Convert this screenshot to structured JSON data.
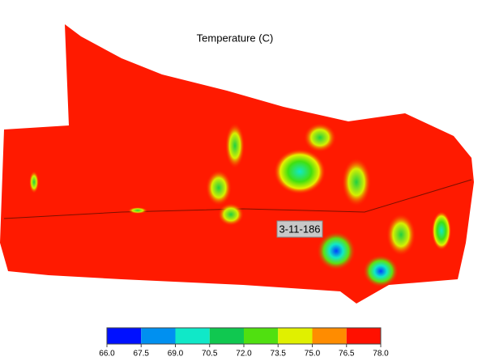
{
  "title": "Temperature (C)",
  "well_label": "3-11-186",
  "colorbar": {
    "colors": [
      "#0010ff",
      "#0090f0",
      "#10e8c8",
      "#10c850",
      "#50e010",
      "#e0f000",
      "#ff8c00",
      "#ff1000"
    ],
    "range": [
      66,
      78
    ],
    "ticks": [
      {
        "value": 66,
        "label": "66.0"
      },
      {
        "value": 67.5,
        "label": "67.5"
      },
      {
        "value": 69,
        "label": "69.0"
      },
      {
        "value": 70.5,
        "label": "70.5"
      },
      {
        "value": 72,
        "label": "72.0"
      },
      {
        "value": 73.5,
        "label": "73.5"
      },
      {
        "value": 75,
        "label": "75.0"
      },
      {
        "value": 76.5,
        "label": "76.5"
      },
      {
        "value": 78,
        "label": "78.0"
      }
    ]
  }
}
